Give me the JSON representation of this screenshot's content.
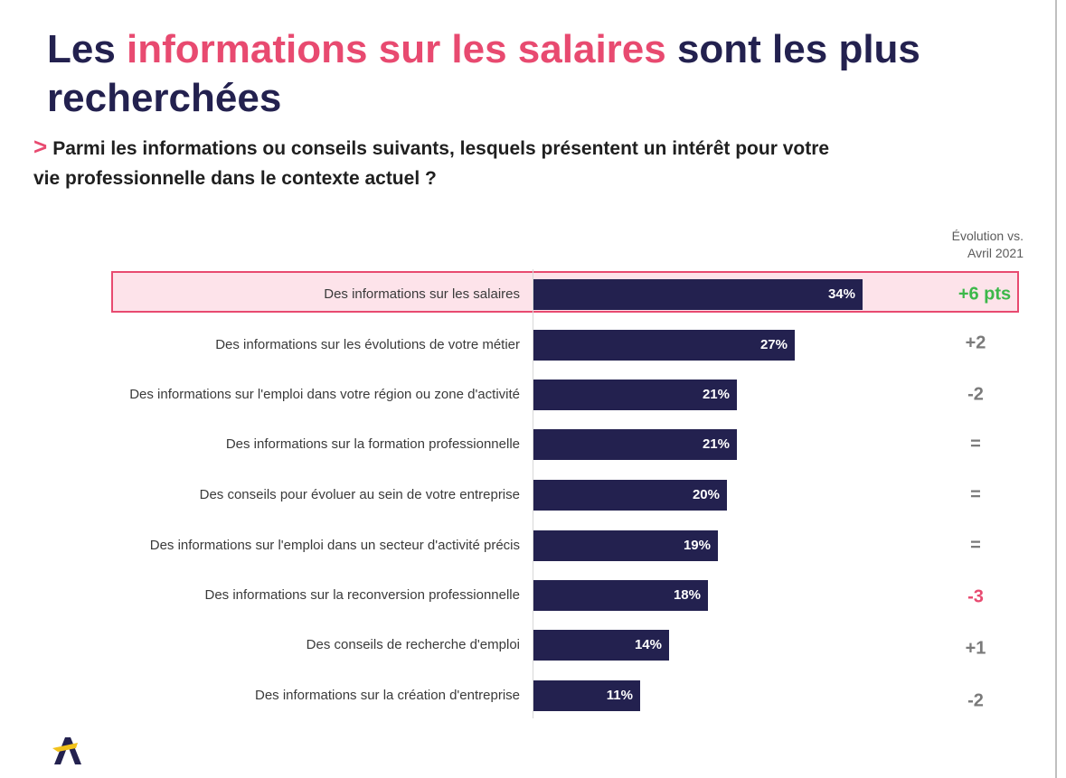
{
  "title": {
    "part1": "Les ",
    "accent": "informations sur les salaires",
    "part2": " sont les plus recherchées"
  },
  "question": {
    "chevron": ">",
    "text": "Parmi les informations ou conseils suivants, lesquels présentent un intérêt pour votre vie professionnelle dans le contexte actuel ?"
  },
  "evolution_header": {
    "line1": "Évolution vs.",
    "line2": "Avril 2021"
  },
  "colors": {
    "navy": "#23214f",
    "accent_pink": "#e84a70",
    "positive_green": "#3cb84a",
    "neutral_gray": "#7a7a7a"
  },
  "logo": {
    "icon": "brand-logo-icon"
  },
  "chart_data": {
    "type": "bar",
    "orientation": "horizontal",
    "title": "",
    "xlabel": "",
    "ylabel": "",
    "xlim": [
      0,
      50
    ],
    "unit": "%",
    "highlighted_index": 0,
    "categories": [
      "Des informations sur les salaires",
      "Des informations sur les évolutions de votre métier",
      "Des informations sur l'emploi dans votre région ou zone d'activité",
      "Des informations sur la formation professionnelle",
      "Des conseils pour évoluer au sein de votre entreprise",
      "Des informations sur l'emploi dans un secteur d'activité précis",
      "Des informations sur la reconversion professionnelle",
      "Des conseils de recherche d'emploi",
      "Des informations sur la création d'entreprise"
    ],
    "values": [
      34,
      27,
      21,
      21,
      20,
      19,
      18,
      14,
      11
    ],
    "value_labels": [
      "34%",
      "27%",
      "21%",
      "21%",
      "20%",
      "19%",
      "18%",
      "14%",
      "11%"
    ],
    "evolution": [
      "+6 pts",
      "+2",
      "-2",
      "=",
      "=",
      "=",
      "-3",
      "+1",
      "-2"
    ],
    "evolution_style": [
      "highlight-positive",
      "neutral",
      "neutral",
      "neutral",
      "neutral",
      "neutral",
      "highlight-negative",
      "neutral",
      "neutral"
    ]
  }
}
